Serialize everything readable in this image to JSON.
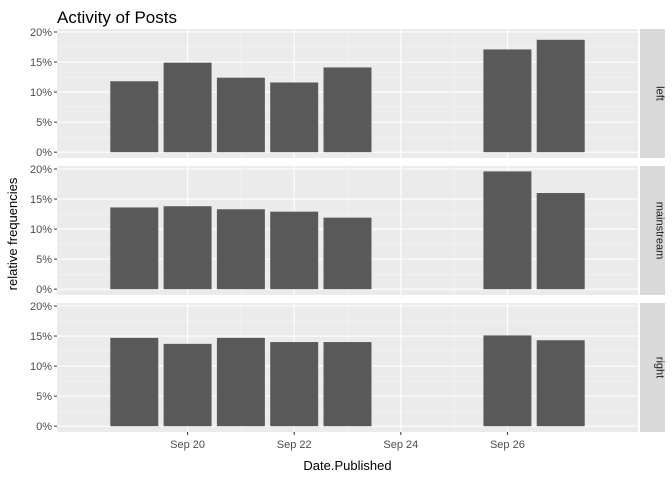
{
  "chart_data": {
    "type": "bar",
    "title": "Activity of Posts",
    "xlabel": "Date.Published",
    "ylabel": "relative frequencies",
    "x_ticks": [
      "Sep 20",
      "Sep 22",
      "Sep 24",
      "Sep 26"
    ],
    "x_tick_days": [
      20,
      22,
      24,
      26
    ],
    "x_range_days": [
      17.55,
      28.45
    ],
    "y_ticks": [
      "0%",
      "5%",
      "10%",
      "15%",
      "20%"
    ],
    "y_tick_values": [
      0,
      5,
      10,
      15,
      20
    ],
    "ylim": [
      -0.97,
      20.5
    ],
    "days": [
      19,
      20,
      21,
      22,
      23,
      26,
      27
    ],
    "facets": [
      {
        "label": "left",
        "values": [
          11.8,
          14.9,
          12.4,
          11.6,
          14.1,
          17.1,
          18.7
        ]
      },
      {
        "label": "mainstream",
        "values": [
          13.6,
          13.8,
          13.3,
          12.9,
          11.9,
          19.6,
          16.0
        ]
      },
      {
        "label": "right",
        "values": [
          14.7,
          13.7,
          14.7,
          14.0,
          14.0,
          15.1,
          14.3
        ]
      }
    ],
    "grid": true,
    "colors": {
      "bar": "#595959",
      "panel": "#ebebeb",
      "grid_major": "#ffffff",
      "strip": "#d9d9d9",
      "tick_text": "#4d4d4d",
      "tick_mark": "#333333"
    }
  }
}
